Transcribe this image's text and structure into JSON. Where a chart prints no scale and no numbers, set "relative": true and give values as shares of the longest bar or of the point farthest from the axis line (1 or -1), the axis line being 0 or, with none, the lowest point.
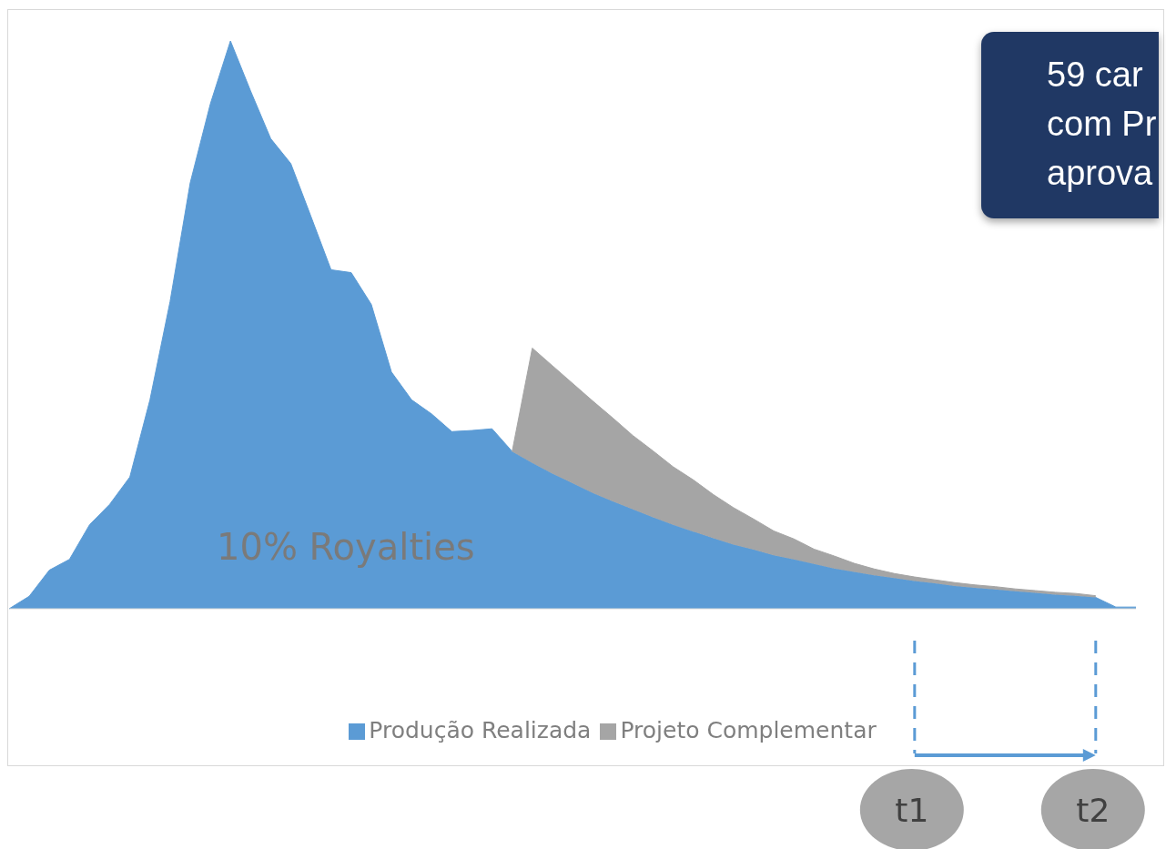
{
  "chart_data": {
    "type": "area",
    "relative": true,
    "stacked": true,
    "legend": "bottom",
    "tick_labels": false,
    "categories": [
      null,
      null,
      null,
      null,
      null,
      null,
      null,
      null,
      null,
      null,
      null,
      null,
      null,
      null,
      null,
      null,
      null,
      null,
      null,
      null,
      null,
      null,
      null,
      null,
      null,
      null,
      null,
      null,
      null,
      null,
      null,
      null,
      null,
      null,
      null,
      null,
      null,
      null,
      null,
      null,
      null,
      null,
      null,
      null,
      null,
      null,
      null,
      null,
      null,
      null,
      null,
      null,
      null,
      null,
      null,
      null,
      null
    ],
    "series": [
      {
        "name": "Produção Realizada",
        "color": "#5b9bd5",
        "values": [
          0,
          0.022,
          0.068,
          0.087,
          0.148,
          0.184,
          0.232,
          0.368,
          0.541,
          0.75,
          0.889,
          1,
          0.912,
          0.828,
          0.784,
          0.691,
          0.597,
          0.592,
          0.536,
          0.417,
          0.368,
          0.343,
          0.312,
          0.314,
          0.317,
          0.277,
          0.257,
          0.238,
          0.221,
          0.204,
          0.189,
          0.175,
          0.161,
          0.148,
          0.136,
          0.124,
          0.113,
          0.104,
          0.094,
          0.087,
          0.079,
          0.071,
          0.065,
          0.059,
          0.054,
          0.049,
          0.045,
          0.04,
          0.037,
          0.034,
          0.031,
          0.028,
          0.025,
          0.023,
          0.02,
          0.003,
          0.003
        ]
      },
      {
        "name": "Projeto Complementar",
        "color": "#a5a5a5",
        "values": [
          null,
          null,
          null,
          null,
          null,
          null,
          null,
          null,
          null,
          null,
          null,
          null,
          null,
          null,
          null,
          null,
          null,
          null,
          null,
          null,
          null,
          null,
          null,
          null,
          null,
          0,
          0.202,
          0.19,
          0.176,
          0.162,
          0.147,
          0.13,
          0.117,
          0.102,
          0.091,
          0.077,
          0.065,
          0.054,
          0.043,
          0.036,
          0.026,
          0.022,
          0.015,
          0.011,
          0.008,
          0.007,
          0.006,
          0.006,
          0.005,
          0.005,
          0.004,
          0.004,
          0.004,
          0.004,
          0.003,
          null,
          null
        ]
      }
    ],
    "annotations": [
      "10% Royalties",
      "59 car\ncom Pr\naprova",
      "t1",
      "t2"
    ]
  }
}
